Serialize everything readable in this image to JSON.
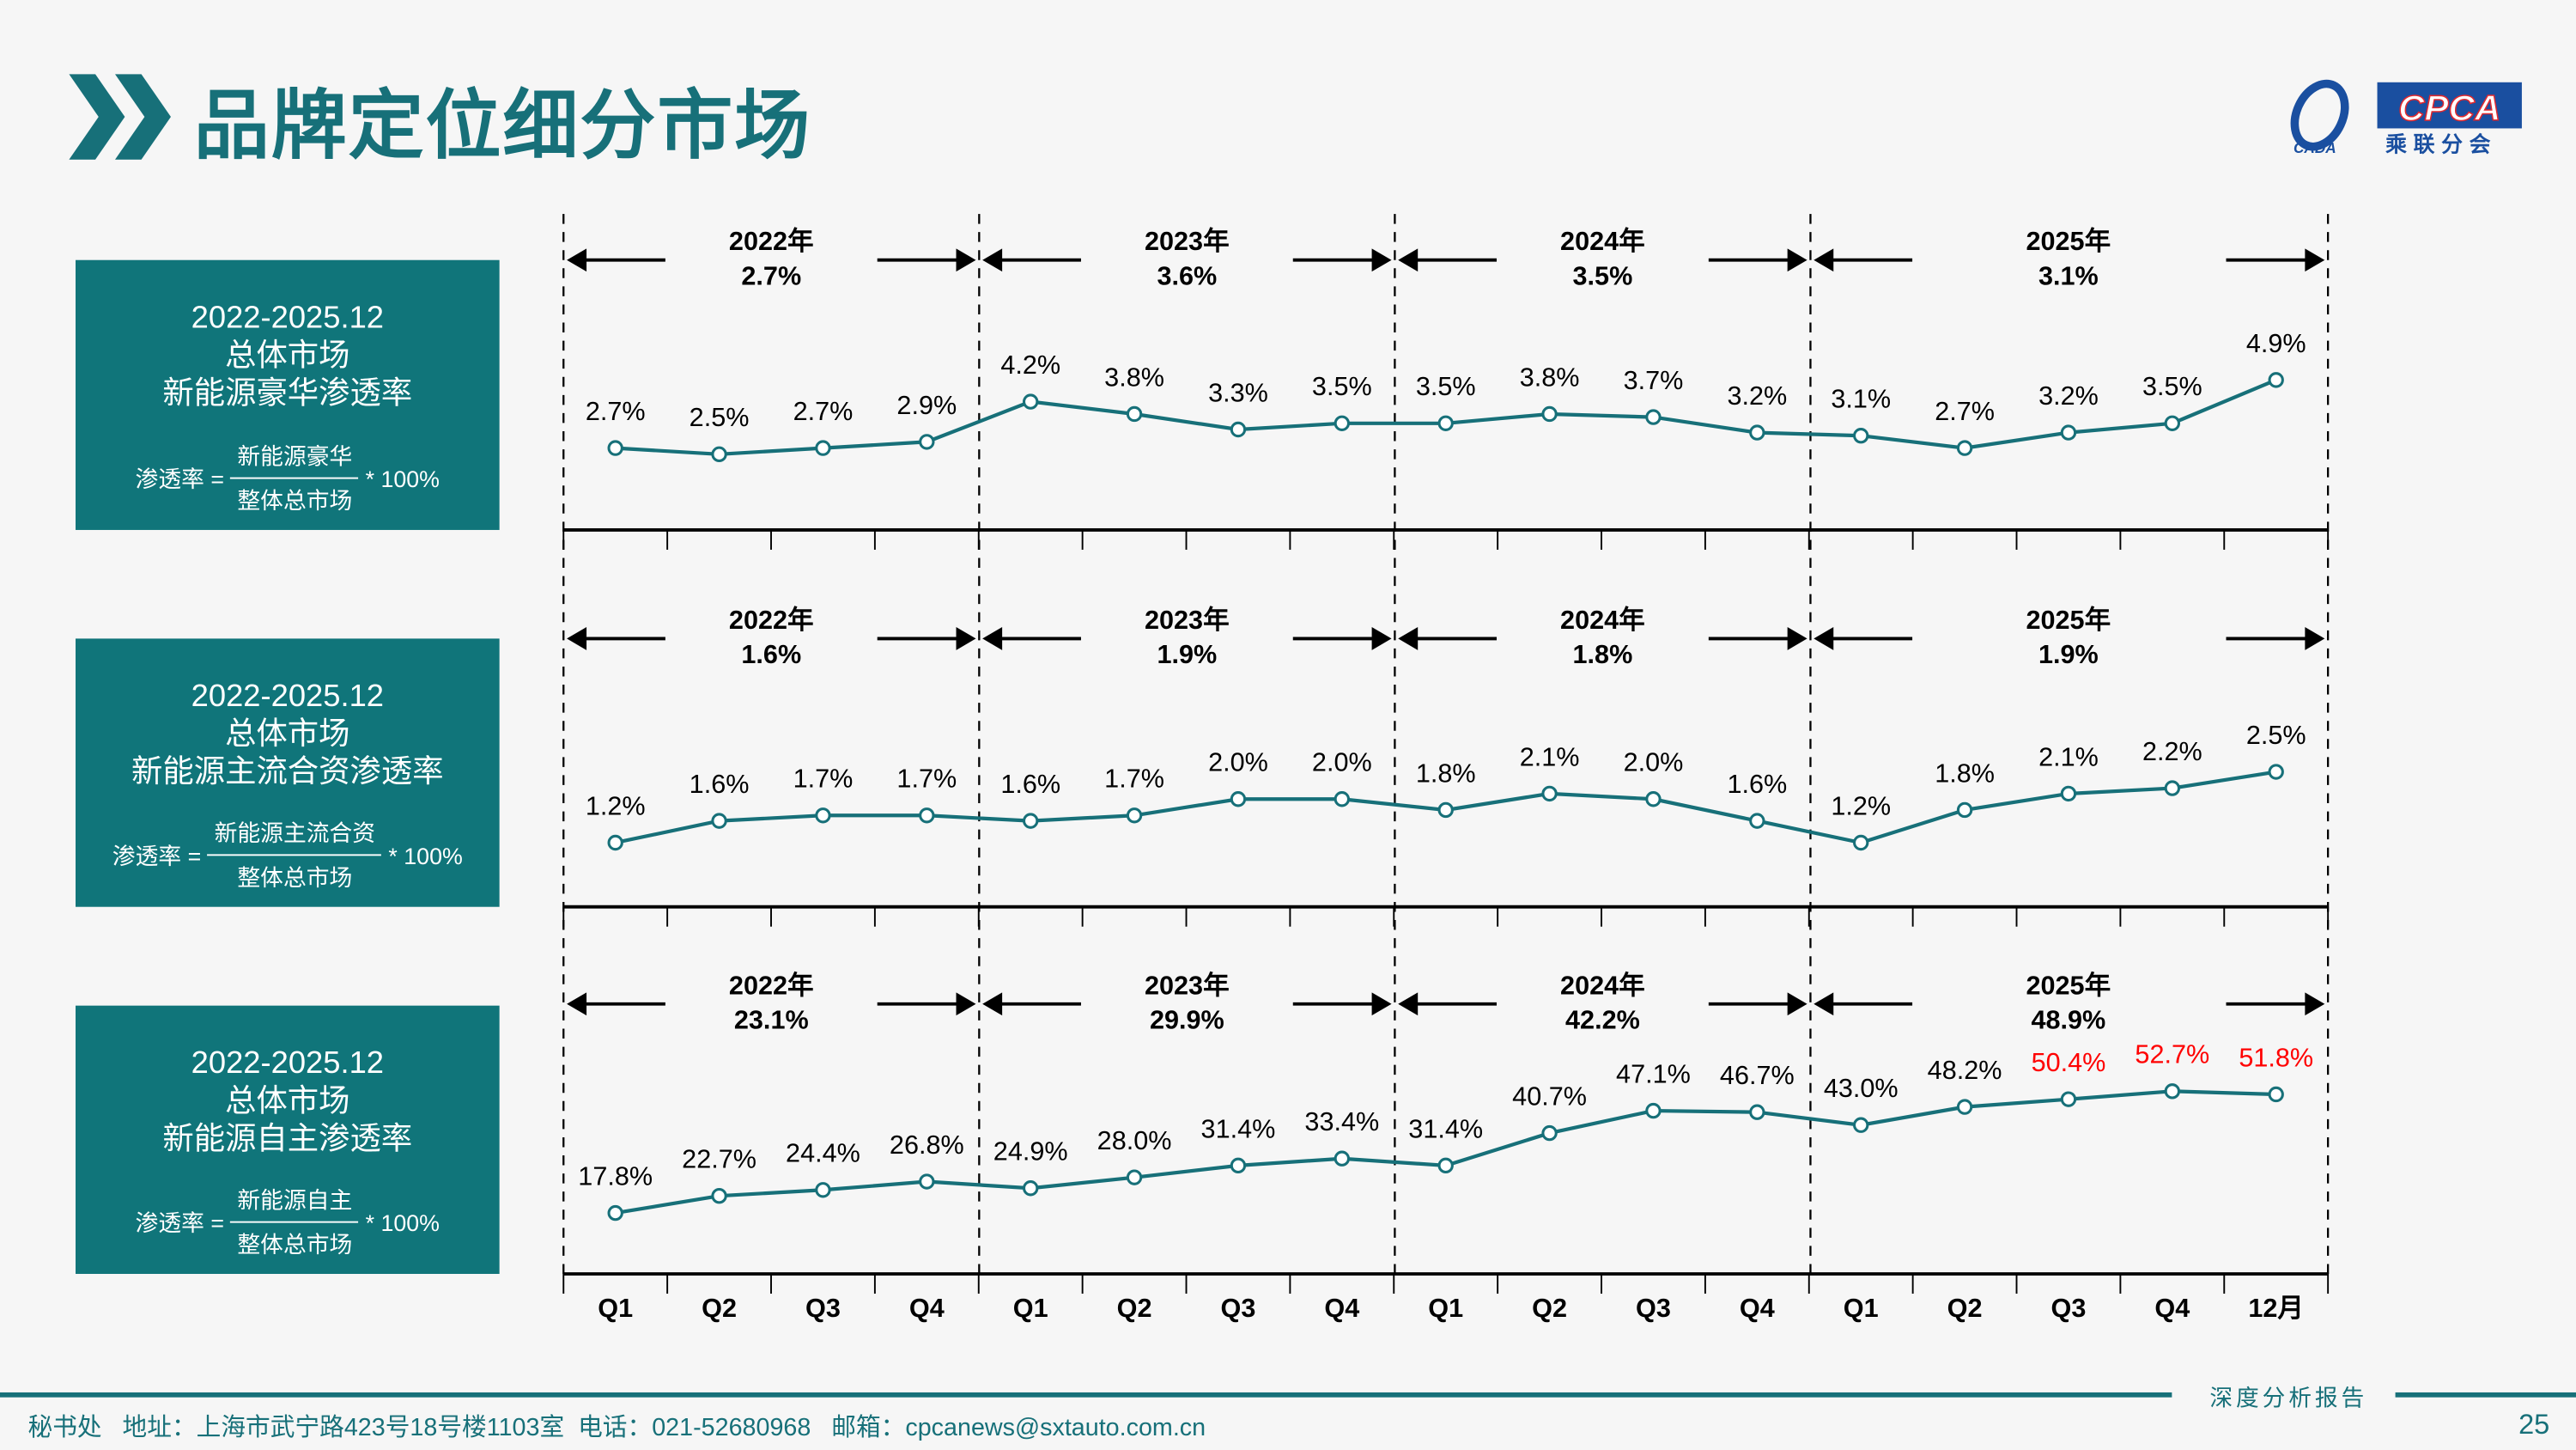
{
  "header": {
    "title": "品牌定位细分市场",
    "logo": {
      "brand": "CPCA",
      "cn": "乘联分会",
      "sub": "CADA",
      "brand_color": "#1a4fa0",
      "accent_color": "#e0282e"
    }
  },
  "colors": {
    "teal": "#10757a",
    "line": "#177079",
    "highlight": "#ff0000",
    "text": "#000000"
  },
  "panels": [
    {
      "period": "2022-2025.12",
      "market": "总体市场",
      "metric": "新能源豪华渗透率",
      "formula": {
        "lhs": "渗透率 =",
        "numerator": "新能源豪华",
        "denominator": "整体总市场",
        "rhs": "* 100%"
      }
    },
    {
      "period": "2022-2025.12",
      "market": "总体市场",
      "metric": "新能源主流合资渗透率",
      "formula": {
        "lhs": "渗透率 =",
        "numerator": "新能源主流合资",
        "denominator": "整体总市场",
        "rhs": "* 100%"
      }
    },
    {
      "period": "2022-2025.12",
      "market": "总体市场",
      "metric": "新能源自主渗透率",
      "formula": {
        "lhs": "渗透率 =",
        "numerator": "新能源自主",
        "denominator": "整体总市场",
        "rhs": "* 100%"
      }
    }
  ],
  "chart_data": [
    {
      "type": "line",
      "unit": "%",
      "categories": [
        "Q1",
        "Q2",
        "Q3",
        "Q4",
        "Q1",
        "Q2",
        "Q3",
        "Q4",
        "Q1",
        "Q2",
        "Q3",
        "Q4",
        "Q1",
        "Q2",
        "Q3",
        "Q4",
        "12月"
      ],
      "values": [
        2.7,
        2.5,
        2.7,
        2.9,
        4.2,
        3.8,
        3.3,
        3.5,
        3.5,
        3.8,
        3.7,
        3.2,
        3.1,
        2.7,
        3.2,
        3.5,
        4.9
      ],
      "years": [
        {
          "label": "2022年",
          "value": "2.7%"
        },
        {
          "label": "2023年",
          "value": "3.6%"
        },
        {
          "label": "2024年",
          "value": "3.5%"
        },
        {
          "label": "2025年",
          "value": "3.1%"
        }
      ],
      "highlight_indices": []
    },
    {
      "type": "line",
      "unit": "%",
      "categories": [
        "Q1",
        "Q2",
        "Q3",
        "Q4",
        "Q1",
        "Q2",
        "Q3",
        "Q4",
        "Q1",
        "Q2",
        "Q3",
        "Q4",
        "Q1",
        "Q2",
        "Q3",
        "Q4",
        "12月"
      ],
      "values": [
        1.2,
        1.6,
        1.7,
        1.7,
        1.6,
        1.7,
        2.0,
        2.0,
        1.8,
        2.1,
        2.0,
        1.6,
        1.2,
        1.8,
        2.1,
        2.2,
        2.5
      ],
      "years": [
        {
          "label": "2022年",
          "value": "1.6%"
        },
        {
          "label": "2023年",
          "value": "1.9%"
        },
        {
          "label": "2024年",
          "value": "1.8%"
        },
        {
          "label": "2025年",
          "value": "1.9%"
        }
      ],
      "highlight_indices": []
    },
    {
      "type": "line",
      "unit": "%",
      "categories": [
        "Q1",
        "Q2",
        "Q3",
        "Q4",
        "Q1",
        "Q2",
        "Q3",
        "Q4",
        "Q1",
        "Q2",
        "Q3",
        "Q4",
        "Q1",
        "Q2",
        "Q3",
        "Q4",
        "12月"
      ],
      "values": [
        17.8,
        22.7,
        24.4,
        26.8,
        24.9,
        28.0,
        31.4,
        33.4,
        31.4,
        40.7,
        47.1,
        46.7,
        43.0,
        48.2,
        50.4,
        52.7,
        51.8
      ],
      "years": [
        {
          "label": "2022年",
          "value": "23.1%"
        },
        {
          "label": "2023年",
          "value": "29.9%"
        },
        {
          "label": "2024年",
          "value": "42.2%"
        },
        {
          "label": "2025年",
          "value": "48.9%"
        }
      ],
      "highlight_indices": [
        14,
        15,
        16
      ]
    }
  ],
  "footer": {
    "tag": "深度分析报告",
    "address": "秘书处   地址：上海市武宁路423号18号楼1103室  电话：021-52680968   邮箱：cpcanews@sxtauto.com.cn",
    "page": "25"
  }
}
